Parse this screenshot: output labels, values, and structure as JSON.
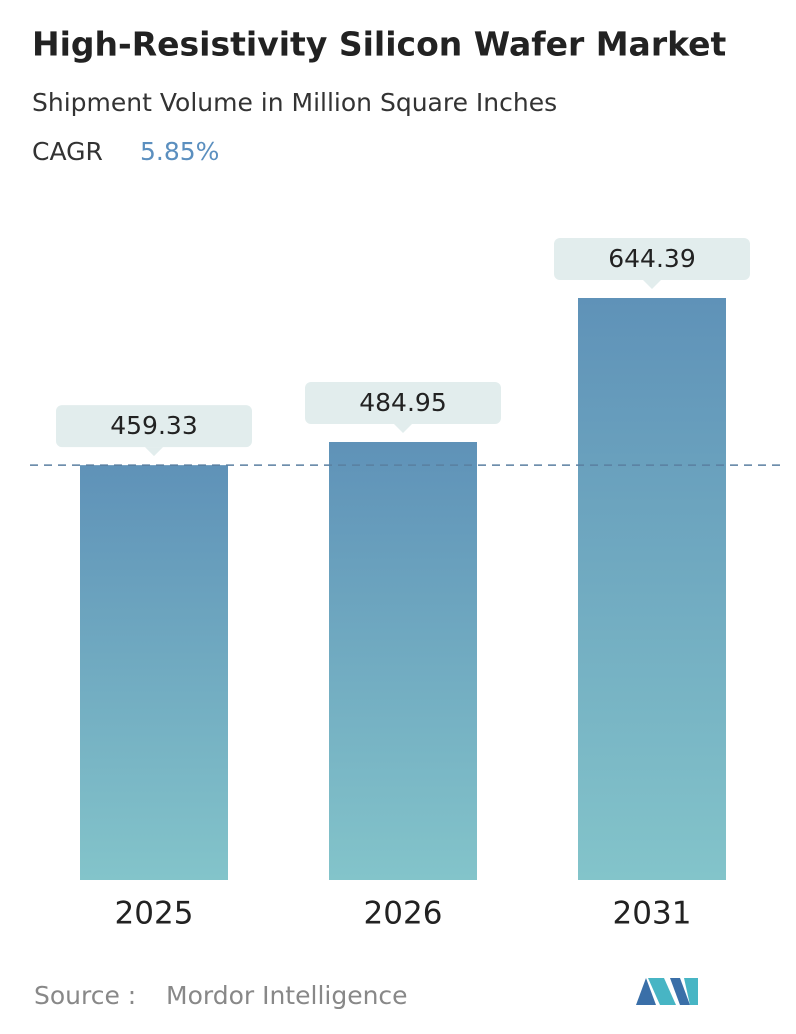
{
  "chart_data": {
    "type": "bar",
    "title": "High-Resistivity Silicon Wafer Market",
    "subtitle": "Shipment Volume in Million Square Inches",
    "cagr_label": "CAGR",
    "cagr_value": "5.85%",
    "categories": [
      "2025",
      "2026",
      "2031"
    ],
    "values": [
      459.33,
      484.95,
      644.39
    ],
    "color_top": "#5f92b8",
    "color_bottom": "#83c4ca",
    "source_label": "Source :",
    "source": "Mordor Intelligence"
  }
}
